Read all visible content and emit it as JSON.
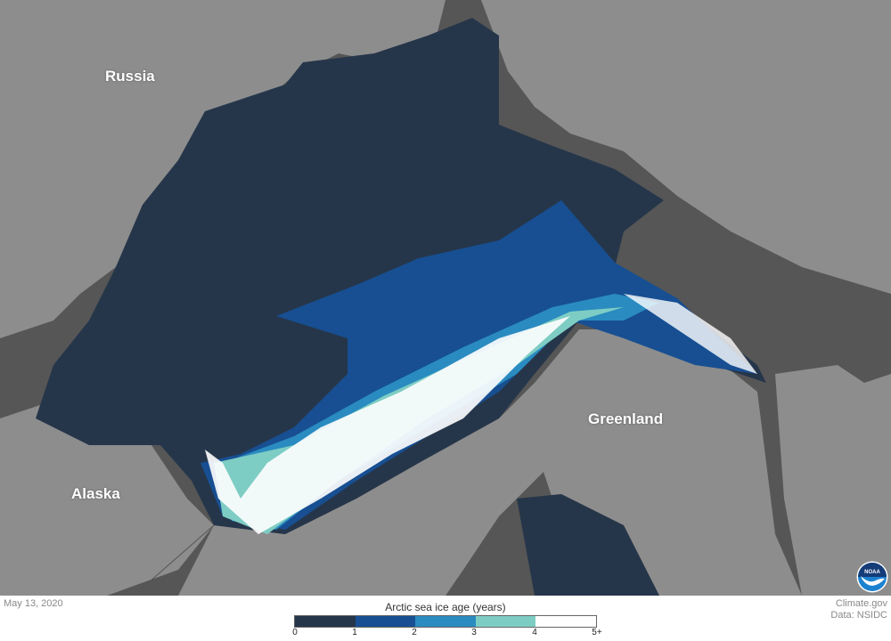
{
  "map": {
    "labels": {
      "russia": "Russia",
      "alaska": "Alaska",
      "greenland": "Greenland"
    },
    "colors": {
      "ocean": "#565656",
      "land": "#8d8d8d",
      "border": "#6e6e6e"
    }
  },
  "footer": {
    "date": "May 13, 2020",
    "credit": "Climate.gov",
    "source": "Data: NSIDC",
    "logo": "NOAA"
  },
  "legend": {
    "title": "Arctic sea ice age (years)",
    "colors": [
      "#26364a",
      "#174f92",
      "#2a8bc0",
      "#7ecdc4",
      "#ffffff"
    ],
    "ticks": [
      "0",
      "1",
      "2",
      "3",
      "4",
      "5+"
    ]
  }
}
